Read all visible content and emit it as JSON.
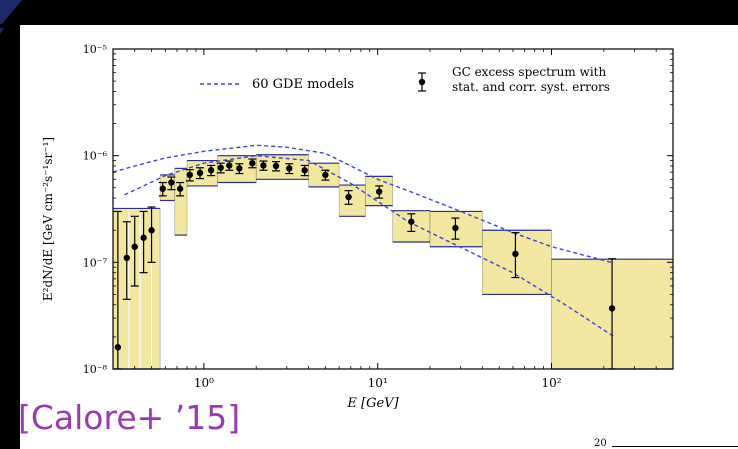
{
  "citation": "[Calore+ ’15]",
  "page_number": "20",
  "colors": {
    "background": "#000000",
    "accent_stripe": "#1e2a6e",
    "band_fill": "#f2e7a0",
    "gde_line": "#3b44e8",
    "citation": "#9a3ab2"
  },
  "chart_data": {
    "type": "scatter",
    "x_scale": "log",
    "y_scale": "log",
    "xlim": [
      0.3,
      500
    ],
    "ylim": [
      1e-08,
      1e-05
    ],
    "xlabel": "E [GeV]",
    "ylabel": "E²dN/dE [GeV cm⁻²s⁻¹sr⁻¹]",
    "x_ticks": [
      1,
      10,
      100
    ],
    "x_tick_labels": [
      "10⁰",
      "10¹",
      "10²"
    ],
    "y_ticks": [
      1e-08,
      1e-07,
      1e-06,
      1e-05
    ],
    "y_tick_labels": [
      "10⁻⁸",
      "10⁻⁷",
      "10⁻⁶",
      "10⁻⁵"
    ],
    "legend": {
      "placement": "top",
      "entries": [
        {
          "label": "60 GDE models"
        },
        {
          "label_line1": "GC excess spectrum with",
          "label_line2": "stat. and corr. syst. errors"
        }
      ]
    },
    "series": [
      {
        "name": "GC excess spectrum with stat. and corr. syst. errors",
        "points": [
          {
            "x": 0.32,
            "y": 1.6e-08,
            "ylo": 1e-08,
            "yhi": 3e-07
          },
          {
            "x": 0.36,
            "y": 1.1e-07,
            "ylo": 4.5e-08,
            "yhi": 2.4e-07
          },
          {
            "x": 0.4,
            "y": 1.4e-07,
            "ylo": 6e-08,
            "yhi": 2.7e-07
          },
          {
            "x": 0.45,
            "y": 1.7e-07,
            "ylo": 8e-08,
            "yhi": 3e-07
          },
          {
            "x": 0.5,
            "y": 2e-07,
            "ylo": 1e-07,
            "yhi": 3.3e-07
          },
          {
            "x": 0.58,
            "y": 4.9e-07,
            "ylo": 4.2e-07,
            "yhi": 5.6e-07
          },
          {
            "x": 0.65,
            "y": 5.6e-07,
            "ylo": 4.8e-07,
            "yhi": 6.3e-07
          },
          {
            "x": 0.73,
            "y": 4.9e-07,
            "ylo": 4.2e-07,
            "yhi": 5.6e-07
          },
          {
            "x": 0.83,
            "y": 6.6e-07,
            "ylo": 5.8e-07,
            "yhi": 7.4e-07
          },
          {
            "x": 0.95,
            "y": 6.9e-07,
            "ylo": 6.1e-07,
            "yhi": 7.7e-07
          },
          {
            "x": 1.1,
            "y": 7.3e-07,
            "ylo": 6.5e-07,
            "yhi": 8.1e-07
          },
          {
            "x": 1.25,
            "y": 7.7e-07,
            "ylo": 6.9e-07,
            "yhi": 8.5e-07
          },
          {
            "x": 1.4,
            "y": 8.1e-07,
            "ylo": 7.3e-07,
            "yhi": 8.9e-07
          },
          {
            "x": 1.6,
            "y": 7.6e-07,
            "ylo": 6.8e-07,
            "yhi": 8.4e-07
          },
          {
            "x": 1.9,
            "y": 8.5e-07,
            "ylo": 7.7e-07,
            "yhi": 9.3e-07
          },
          {
            "x": 2.2,
            "y": 8.1e-07,
            "ylo": 7.3e-07,
            "yhi": 8.9e-07
          },
          {
            "x": 2.6,
            "y": 8e-07,
            "ylo": 7.2e-07,
            "yhi": 8.8e-07
          },
          {
            "x": 3.1,
            "y": 7.6e-07,
            "ylo": 6.8e-07,
            "yhi": 8.4e-07
          },
          {
            "x": 3.8,
            "y": 7.3e-07,
            "ylo": 6.5e-07,
            "yhi": 8.1e-07
          },
          {
            "x": 5.0,
            "y": 6.6e-07,
            "ylo": 5.9e-07,
            "yhi": 7.3e-07
          },
          {
            "x": 6.8,
            "y": 4.1e-07,
            "ylo": 3.5e-07,
            "yhi": 4.7e-07
          },
          {
            "x": 10.2,
            "y": 4.6e-07,
            "ylo": 4e-07,
            "yhi": 5.2e-07
          },
          {
            "x": 15.6,
            "y": 2.4e-07,
            "ylo": 1.95e-07,
            "yhi": 2.85e-07
          },
          {
            "x": 28,
            "y": 2.1e-07,
            "ylo": 1.65e-07,
            "yhi": 2.6e-07
          },
          {
            "x": 62,
            "y": 1.2e-07,
            "ylo": 7.2e-08,
            "yhi": 1.9e-07
          },
          {
            "x": 223,
            "y": 3.7e-08,
            "ylo": 1e-08,
            "yhi": 1.08e-07
          }
        ]
      },
      {
        "name": "60 GDE models",
        "lines": [
          [
            [
              0.3,
              7e-07
            ],
            [
              0.4,
              8e-07
            ],
            [
              0.6,
              9.5e-07
            ],
            [
              1.0,
              1.1e-06
            ],
            [
              2.0,
              1.25e-06
            ],
            [
              3.0,
              1.2e-06
            ],
            [
              5.0,
              1.05e-06
            ],
            [
              7.0,
              8e-07
            ],
            [
              10,
              6e-07
            ],
            [
              16,
              4.5e-07
            ],
            [
              30,
              3e-07
            ],
            [
              60,
              1.9e-07
            ],
            [
              100,
              1.4e-07
            ],
            [
              220,
              1e-07
            ]
          ],
          [
            [
              0.35,
              4.3e-07
            ],
            [
              0.6,
              6.5e-07
            ],
            [
              1.0,
              8.5e-07
            ],
            [
              2.0,
              1e-06
            ],
            [
              4.0,
              9e-07
            ],
            [
              7.0,
              5.5e-07
            ],
            [
              15,
              2.4e-07
            ],
            [
              25,
              1.6e-07
            ],
            [
              60,
              8e-08
            ],
            [
              120,
              4e-08
            ],
            [
              230,
              2e-08
            ]
          ]
        ]
      }
    ],
    "bands": [
      {
        "x0": 0.3,
        "x1": 0.56,
        "y0": 1e-08,
        "y1": 3.2e-07
      },
      {
        "x0": 0.56,
        "x1": 0.68,
        "y0": 3.8e-07,
        "y1": 6.6e-07
      },
      {
        "x0": 0.68,
        "x1": 0.8,
        "y0": 1.8e-07,
        "y1": 7.6e-07
      },
      {
        "x0": 0.8,
        "x1": 1.2,
        "y0": 5.2e-07,
        "y1": 9e-07
      },
      {
        "x0": 1.2,
        "x1": 2.0,
        "y0": 5.6e-07,
        "y1": 1e-06
      },
      {
        "x0": 2.0,
        "x1": 4.0,
        "y0": 6e-07,
        "y1": 1.02e-06
      },
      {
        "x0": 4.0,
        "x1": 6.0,
        "y0": 5.1e-07,
        "y1": 8.5e-07
      },
      {
        "x0": 6.0,
        "x1": 8.5,
        "y0": 2.7e-07,
        "y1": 5.3e-07
      },
      {
        "x0": 8.5,
        "x1": 12.2,
        "y0": 3.4e-07,
        "y1": 6.4e-07
      },
      {
        "x0": 12.2,
        "x1": 20,
        "y0": 1.55e-07,
        "y1": 3.05e-07
      },
      {
        "x0": 20,
        "x1": 40,
        "y0": 1.4e-07,
        "y1": 3e-07
      },
      {
        "x0": 40,
        "x1": 100,
        "y0": 5e-08,
        "y1": 2e-07
      },
      {
        "x0": 100,
        "x1": 500,
        "y0": 1e-08,
        "y1": 1.07e-07
      }
    ]
  }
}
